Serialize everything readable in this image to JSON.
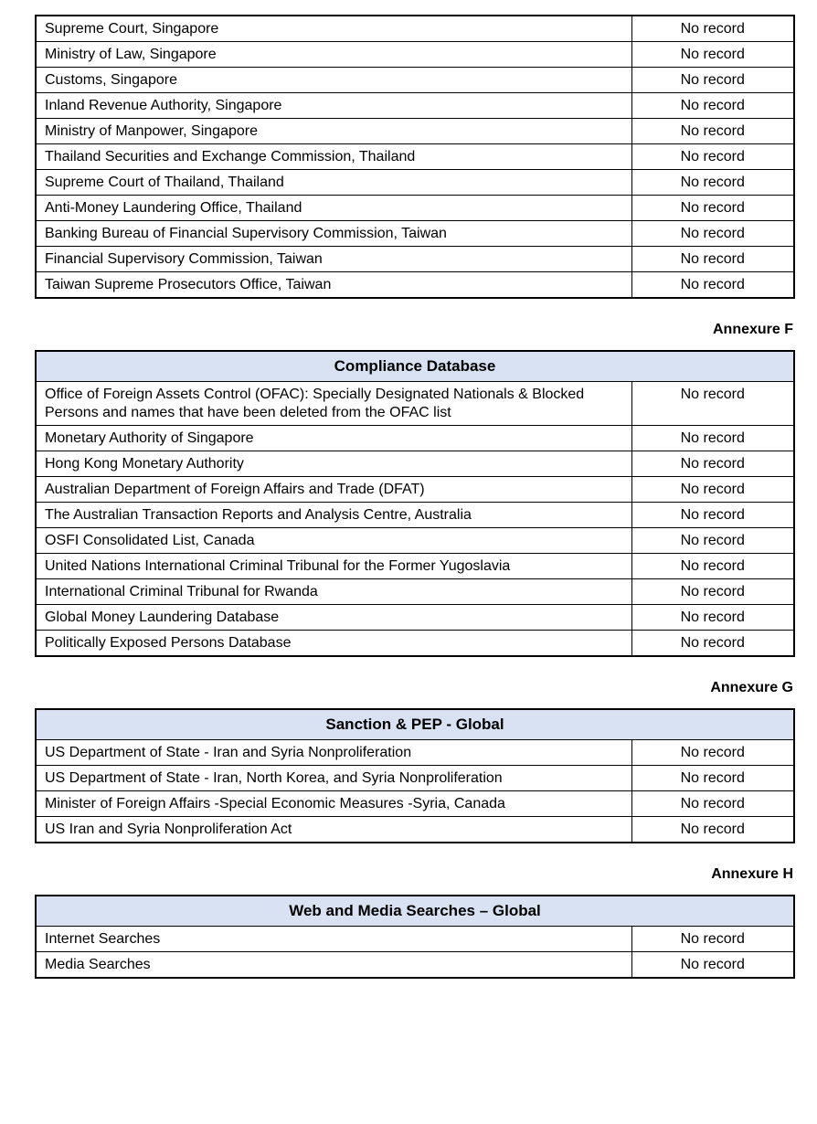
{
  "colors": {
    "header_fill": "#D9E2F3",
    "border": "#000000",
    "text": "#000000"
  },
  "tables": [
    {
      "annexure": null,
      "title": null,
      "rows": [
        {
          "source": "Supreme Court, Singapore",
          "result": "No record"
        },
        {
          "source": "Ministry of Law, Singapore",
          "result": "No record"
        },
        {
          "source": "Customs, Singapore",
          "result": "No record"
        },
        {
          "source": "Inland Revenue Authority, Singapore",
          "result": "No record"
        },
        {
          "source": "Ministry of Manpower, Singapore",
          "result": "No record"
        },
        {
          "source": "Thailand Securities and Exchange Commission, Thailand",
          "result": "No record"
        },
        {
          "source": "Supreme Court of Thailand, Thailand",
          "result": "No record"
        },
        {
          "source": "Anti-Money Laundering Office, Thailand",
          "result": "No record"
        },
        {
          "source": "Banking Bureau of Financial Supervisory Commission, Taiwan",
          "result": "No record"
        },
        {
          "source": "Financial Supervisory Commission, Taiwan",
          "result": "No record"
        },
        {
          "source": "Taiwan Supreme Prosecutors Office, Taiwan",
          "result": "No record"
        }
      ]
    },
    {
      "annexure": "Annexure F",
      "title": "Compliance Database",
      "rows": [
        {
          "source": "Office of Foreign Assets Control (OFAC): Specially Designated Nationals & Blocked Persons and names that have been deleted from the OFAC list",
          "result": "No record"
        },
        {
          "source": "Monetary Authority of Singapore",
          "result": "No record"
        },
        {
          "source": "Hong Kong Monetary Authority",
          "result": "No record"
        },
        {
          "source": "Australian Department of Foreign Affairs and Trade (DFAT)",
          "result": "No record"
        },
        {
          "source": "The Australian Transaction Reports and Analysis Centre, Australia",
          "result": "No record"
        },
        {
          "source": "OSFI Consolidated List, Canada",
          "result": "No record"
        },
        {
          "source": "United Nations International Criminal Tribunal for the Former Yugoslavia",
          "result": "No record"
        },
        {
          "source": "International Criminal Tribunal for Rwanda",
          "result": "No record"
        },
        {
          "source": "Global Money Laundering Database",
          "result": "No record"
        },
        {
          "source": "Politically Exposed Persons Database",
          "result": "No record"
        }
      ]
    },
    {
      "annexure": "Annexure G",
      "title": "Sanction & PEP - Global",
      "rows": [
        {
          "source": "US Department of State - Iran and Syria Nonproliferation",
          "result": "No record"
        },
        {
          "source": "US Department of State - Iran, North Korea, and Syria Nonproliferation",
          "result": "No record"
        },
        {
          "source": "Minister of Foreign Affairs -Special Economic Measures -Syria, Canada",
          "result": "No record"
        },
        {
          "source": "US Iran and Syria Nonproliferation Act",
          "result": "No record"
        }
      ]
    },
    {
      "annexure": "Annexure H",
      "title": "Web and Media Searches – Global",
      "rows": [
        {
          "source": "Internet Searches",
          "result": "No record"
        },
        {
          "source": "Media Searches",
          "result": "No record"
        }
      ]
    }
  ]
}
